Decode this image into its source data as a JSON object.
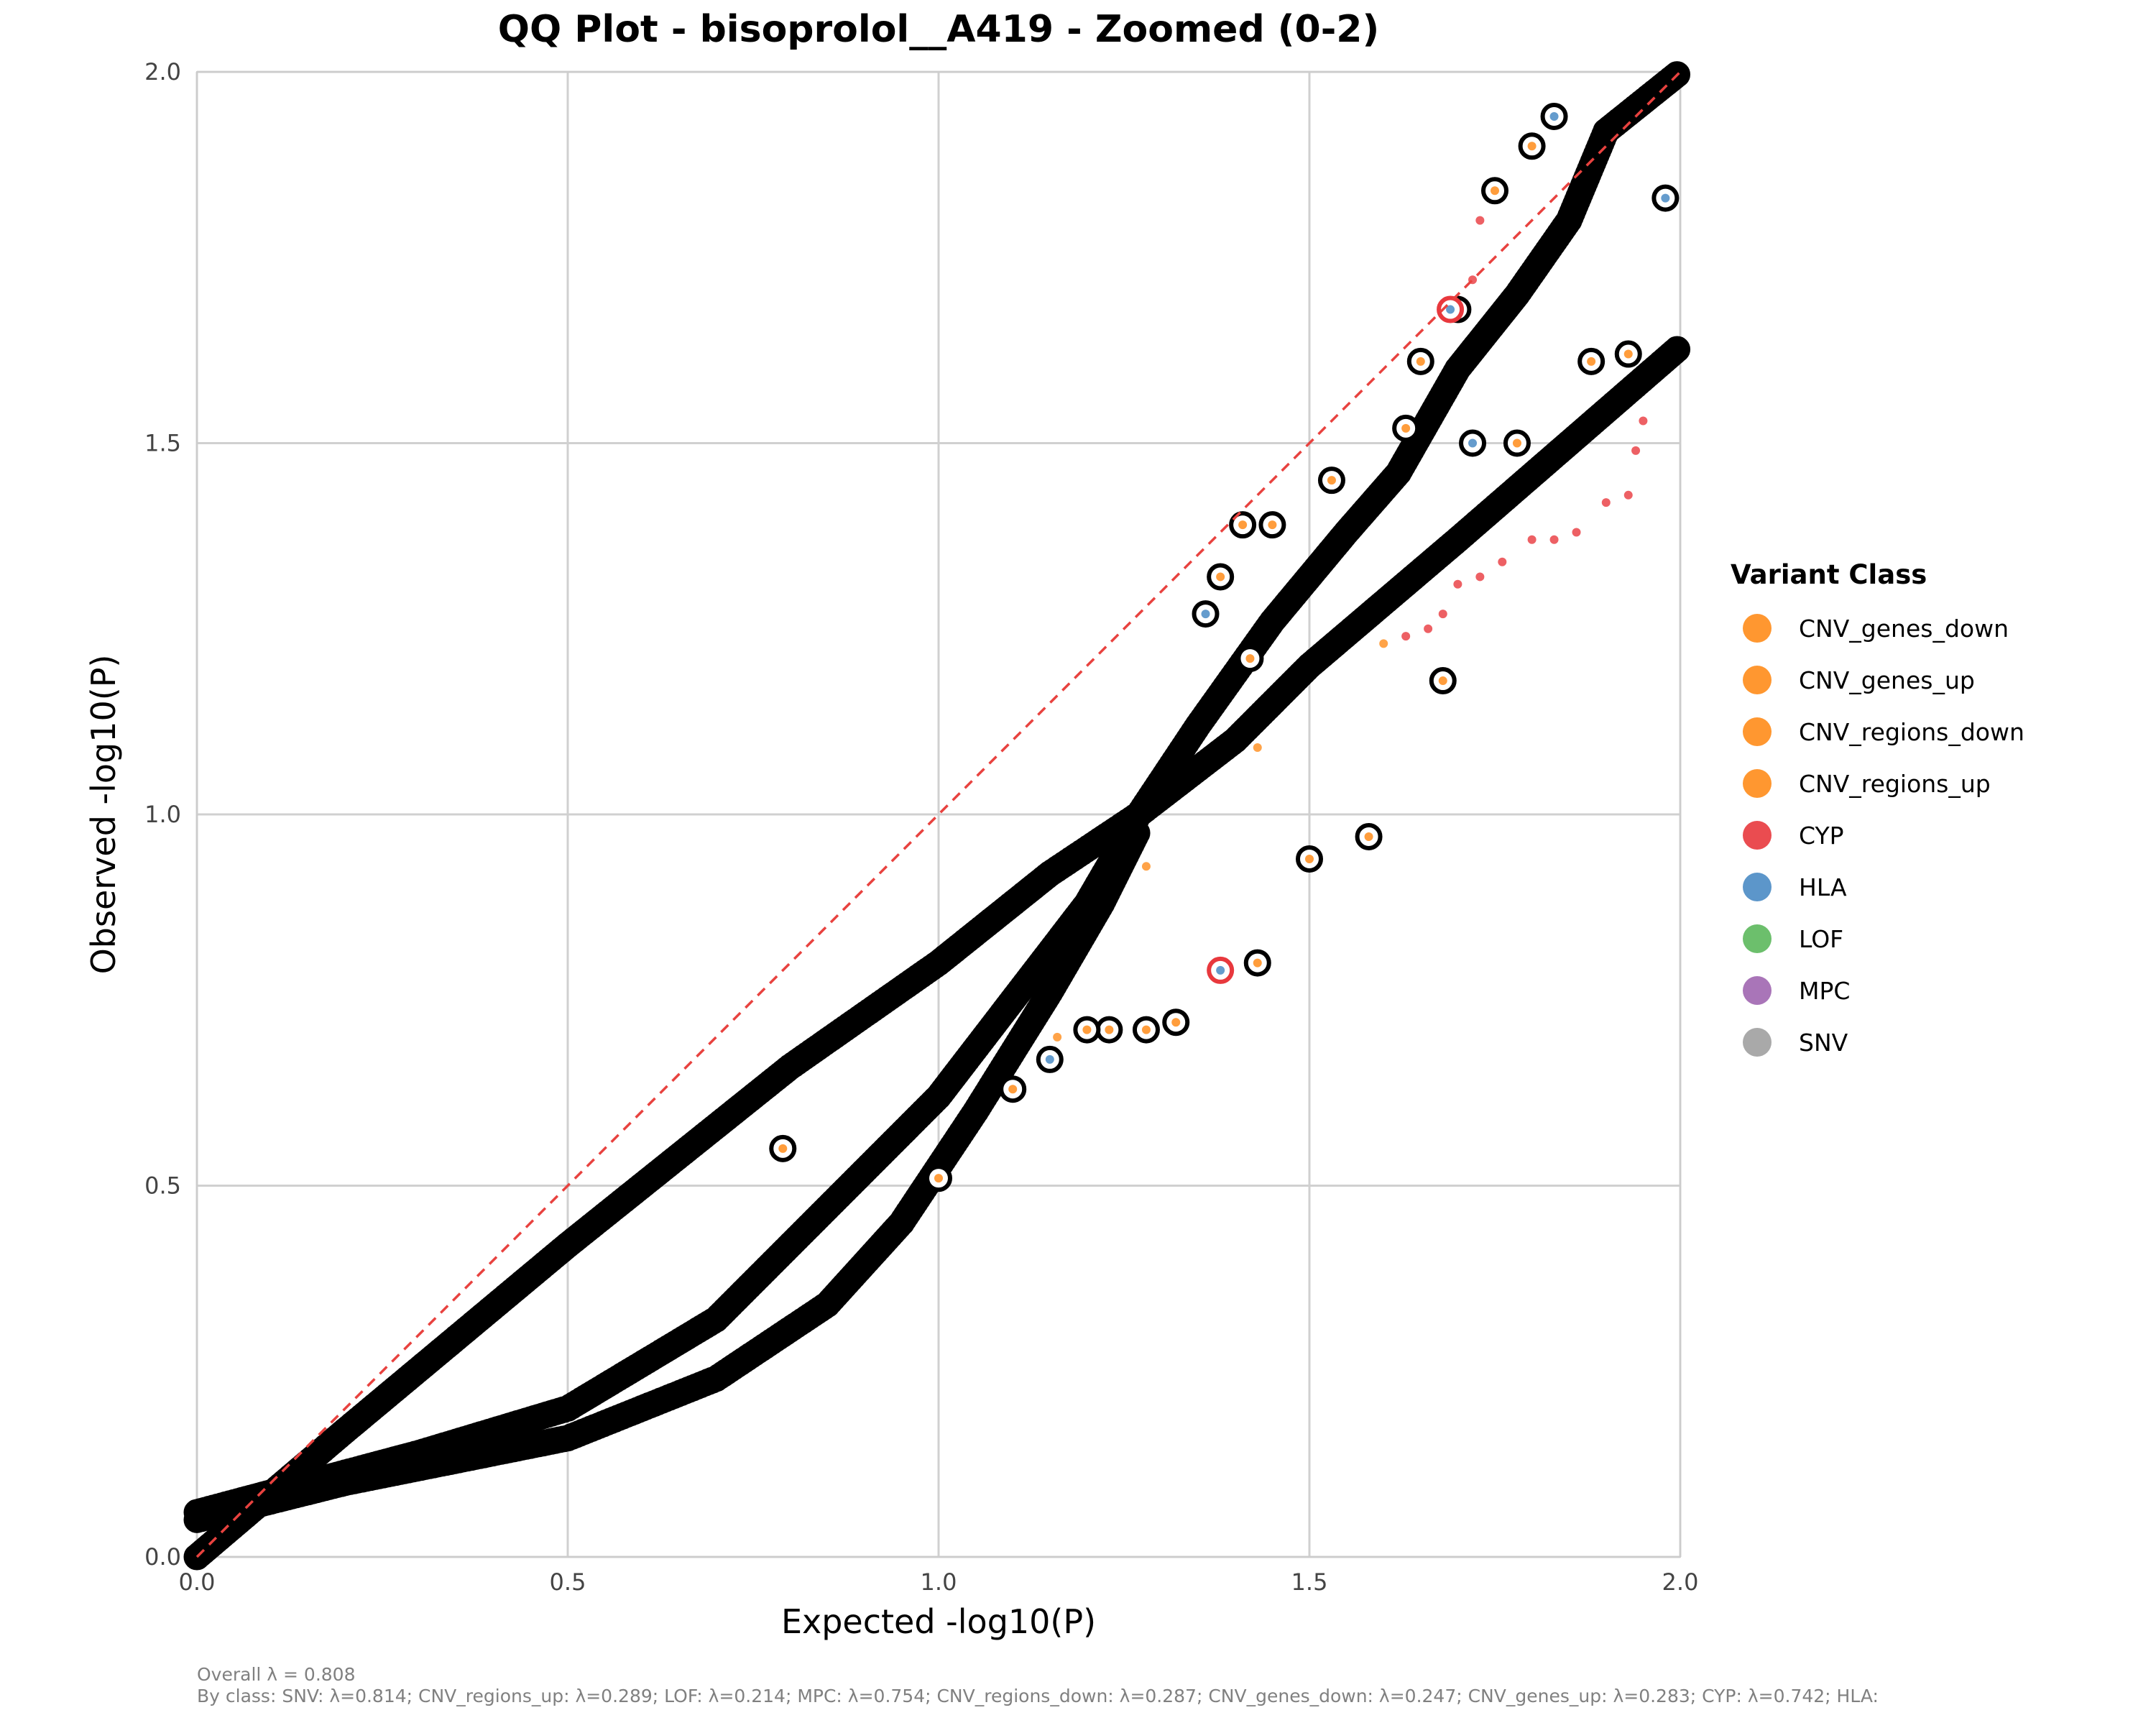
{
  "chart_data": {
    "type": "scatter",
    "title": "QQ Plot - bisoprolol__A419 - Zoomed (0-2)",
    "xlabel": "Expected -log10(P)",
    "ylabel": "Observed -log10(P)",
    "xlim": [
      0,
      2
    ],
    "ylim": [
      0,
      2
    ],
    "xticks": [
      "0.0",
      "0.5",
      "1.0",
      "1.5",
      "2.0"
    ],
    "yticks": [
      "0.0",
      "0.5",
      "1.0",
      "1.5",
      "2.0"
    ],
    "xtick_values": [
      0,
      0.5,
      1,
      1.5,
      2
    ],
    "ytick_values": [
      0,
      0.5,
      1,
      1.5,
      2
    ],
    "grid": true,
    "reference_line": {
      "style": "dashed",
      "color": "#e8423f",
      "from": [
        0,
        0
      ],
      "to": [
        2,
        2
      ]
    },
    "legend": {
      "title": "Variant Class",
      "placement": "right",
      "entries": [
        {
          "label": "CNV_genes_down",
          "color": "#ff8c1a"
        },
        {
          "label": "CNV_genes_up",
          "color": "#ff8c1a"
        },
        {
          "label": "CNV_regions_down",
          "color": "#ff8c1a"
        },
        {
          "label": "CNV_regions_up",
          "color": "#ff8c1a"
        },
        {
          "label": "CYP",
          "color": "#e8383d"
        },
        {
          "label": "HLA",
          "color": "#4a8bc4"
        },
        {
          "label": "LOF",
          "color": "#5cb85c"
        },
        {
          "label": "MPC",
          "color": "#a066b0"
        },
        {
          "label": "SNV",
          "color": "#a0a0a0"
        }
      ]
    },
    "series": [
      {
        "name": "upper_band",
        "points": [
          [
            0,
            0
          ],
          [
            0.2,
            0.17
          ],
          [
            0.5,
            0.42
          ],
          [
            0.8,
            0.66
          ],
          [
            1.0,
            0.8
          ],
          [
            1.15,
            0.92
          ],
          [
            1.27,
            1.0
          ],
          [
            1.4,
            1.1
          ],
          [
            1.5,
            1.2
          ],
          [
            1.7,
            1.37
          ],
          [
            1.85,
            1.5
          ],
          [
            2.0,
            1.63
          ]
        ]
      },
      {
        "name": "steep_branch",
        "points": [
          [
            1.27,
            1.0
          ],
          [
            1.35,
            1.12
          ],
          [
            1.45,
            1.26
          ],
          [
            1.55,
            1.38
          ],
          [
            1.62,
            1.46
          ],
          [
            1.7,
            1.6
          ],
          [
            1.78,
            1.7
          ],
          [
            1.85,
            1.8
          ],
          [
            1.9,
            1.92
          ],
          [
            2.0,
            2.0
          ]
        ]
      },
      {
        "name": "middle_band",
        "points": [
          [
            0.0,
            0.06
          ],
          [
            0.3,
            0.14
          ],
          [
            0.5,
            0.2
          ],
          [
            0.7,
            0.32
          ],
          [
            0.85,
            0.47
          ],
          [
            1.0,
            0.62
          ],
          [
            1.1,
            0.75
          ],
          [
            1.2,
            0.88
          ],
          [
            1.27,
            1.0
          ]
        ]
      },
      {
        "name": "lower_band",
        "points": [
          [
            0.0,
            0.05
          ],
          [
            0.2,
            0.1
          ],
          [
            0.5,
            0.16
          ],
          [
            0.7,
            0.24
          ],
          [
            0.85,
            0.34
          ],
          [
            0.95,
            0.45
          ],
          [
            1.05,
            0.6
          ],
          [
            1.15,
            0.76
          ],
          [
            1.22,
            0.88
          ],
          [
            1.27,
            0.98
          ]
        ]
      }
    ],
    "outliers": [
      [
        1.83,
        1.94
      ],
      [
        1.8,
        1.9
      ],
      [
        1.75,
        1.84
      ],
      [
        1.7,
        1.68
      ],
      [
        1.65,
        1.61
      ],
      [
        1.98,
        1.83
      ],
      [
        1.88,
        1.61
      ],
      [
        1.93,
        1.62
      ],
      [
        1.53,
        1.45
      ],
      [
        1.63,
        1.52
      ],
      [
        1.72,
        1.5
      ],
      [
        1.78,
        1.5
      ],
      [
        1.41,
        1.39
      ],
      [
        1.45,
        1.39
      ],
      [
        1.38,
        1.32
      ],
      [
        1.36,
        1.27
      ],
      [
        1.68,
        1.18
      ],
      [
        1.58,
        0.97
      ],
      [
        1.5,
        0.94
      ],
      [
        1.43,
        0.8
      ],
      [
        1.38,
        0.79
      ],
      [
        1.32,
        0.72
      ],
      [
        1.28,
        0.71
      ],
      [
        1.23,
        0.71
      ],
      [
        1.2,
        0.71
      ],
      [
        1.15,
        0.67
      ],
      [
        1.1,
        0.63
      ],
      [
        1.0,
        0.51
      ],
      [
        0.79,
        0.55
      ],
      [
        1.42,
        1.21
      ],
      [
        1.69,
        1.68
      ]
    ],
    "small_points": [
      [
        1.73,
        1.8
      ],
      [
        1.72,
        1.72
      ],
      [
        1.95,
        1.53
      ],
      [
        1.94,
        1.49
      ],
      [
        1.93,
        1.43
      ],
      [
        1.9,
        1.42
      ],
      [
        1.86,
        1.38
      ],
      [
        1.83,
        1.37
      ],
      [
        1.8,
        1.37
      ],
      [
        1.76,
        1.34
      ],
      [
        1.73,
        1.32
      ],
      [
        1.7,
        1.31
      ],
      [
        1.68,
        1.27
      ],
      [
        1.66,
        1.25
      ],
      [
        1.63,
        1.24
      ],
      [
        1.6,
        1.23
      ],
      [
        1.43,
        1.09
      ],
      [
        1.35,
        1.11
      ],
      [
        1.28,
        0.93
      ],
      [
        1.16,
        0.7
      ]
    ],
    "annotations": [
      "Overall λ = 0.808",
      "By class: SNV: λ=0.814; CNV_regions_up: λ=0.289; LOF: λ=0.214; MPC: λ=0.754; CNV_regions_down: λ=0.287; CNV_genes_down: λ=0.247; CNV_genes_up: λ=0.283; CYP: λ=0.742; HLA:"
    ]
  }
}
